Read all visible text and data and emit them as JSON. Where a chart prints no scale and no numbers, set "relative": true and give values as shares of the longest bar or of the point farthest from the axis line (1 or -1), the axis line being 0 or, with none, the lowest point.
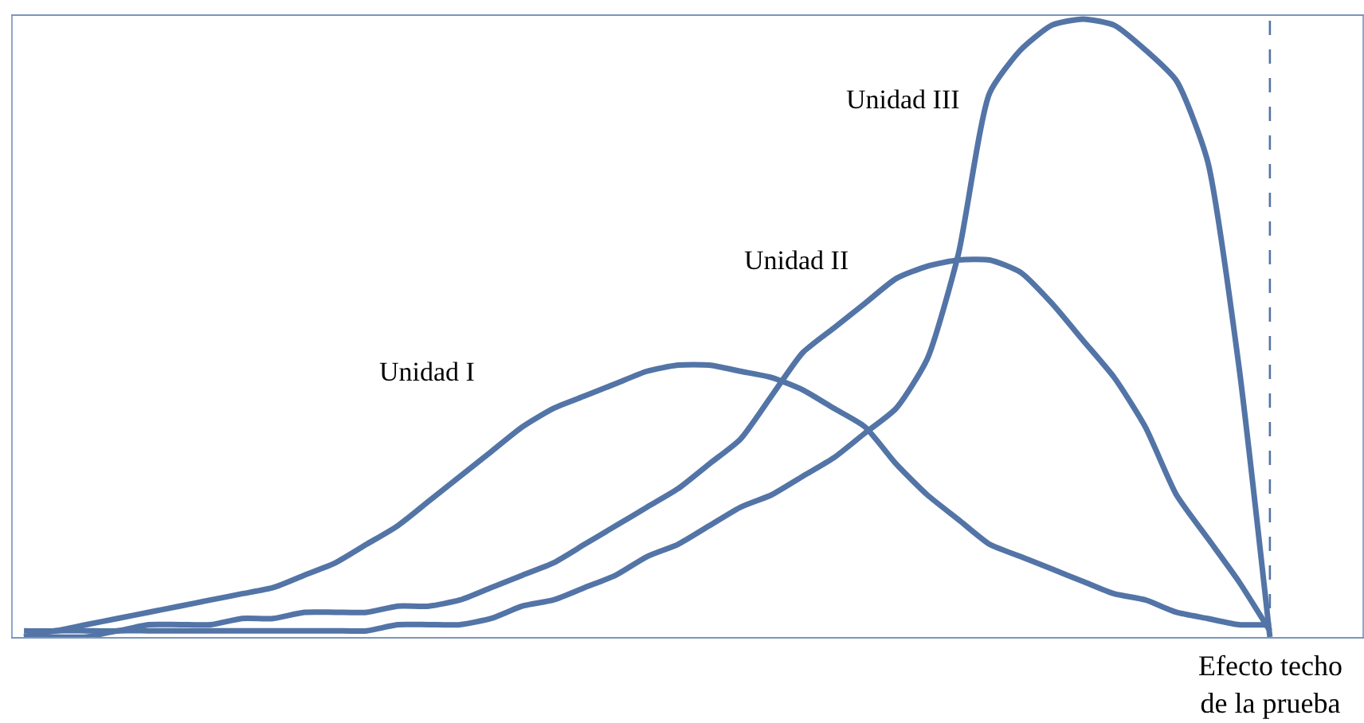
{
  "chart_data": {
    "type": "line",
    "relative": true,
    "categories": [
      null,
      null,
      null,
      null,
      null,
      null,
      null,
      null,
      null,
      null,
      null,
      null,
      null,
      null,
      null,
      null,
      null,
      null,
      null,
      null,
      null,
      null,
      null,
      null,
      null,
      null,
      null,
      null,
      null,
      null,
      null,
      null,
      null,
      null,
      null,
      null,
      null,
      null,
      null,
      null,
      null,
      null,
      null
    ],
    "series": [
      {
        "name": "Unidad I",
        "color": "#5374a6",
        "values": [
          0.01,
          0.01,
          0.02,
          0.03,
          0.04,
          0.05,
          0.06,
          0.07,
          0.08,
          0.1,
          0.12,
          0.15,
          0.18,
          0.22,
          0.26,
          0.3,
          0.34,
          0.37,
          0.39,
          0.41,
          0.43,
          0.44,
          0.44,
          0.43,
          0.42,
          0.4,
          0.37,
          0.34,
          0.28,
          0.23,
          0.19,
          0.15,
          0.13,
          0.11,
          0.09,
          0.07,
          0.06,
          0.04,
          0.03,
          0.02,
          0.02,
          null,
          null
        ]
      },
      {
        "name": "Unidad II",
        "color": "#5374a6",
        "values": [
          0.0,
          0.01,
          0.01,
          0.01,
          0.02,
          0.02,
          0.02,
          0.03,
          0.03,
          0.04,
          0.04,
          0.04,
          0.05,
          0.05,
          0.06,
          0.08,
          0.1,
          0.12,
          0.15,
          0.18,
          0.21,
          0.24,
          0.28,
          0.32,
          0.39,
          0.46,
          0.5,
          0.54,
          0.58,
          0.6,
          0.61,
          0.61,
          0.59,
          0.54,
          0.48,
          0.42,
          0.34,
          0.23,
          0.16,
          0.09,
          0.01,
          null,
          null
        ]
      },
      {
        "name": "Unidad III",
        "color": "#5374a6",
        "values": [
          0.0,
          0.0,
          0.0,
          0.01,
          0.01,
          0.01,
          0.01,
          0.01,
          0.01,
          0.01,
          0.01,
          0.01,
          0.02,
          0.02,
          0.02,
          0.03,
          0.05,
          0.06,
          0.08,
          0.1,
          0.13,
          0.15,
          0.18,
          0.21,
          0.23,
          0.26,
          0.29,
          0.33,
          0.37,
          0.45,
          0.62,
          0.88,
          0.95,
          0.99,
          1.0,
          0.99,
          0.95,
          0.9,
          0.77,
          0.44,
          0.0,
          null,
          null
        ]
      }
    ],
    "annotations": [
      "Efecto techo\nde la prueba"
    ],
    "legend": false,
    "marker": "none",
    "line_style": "solid"
  }
}
